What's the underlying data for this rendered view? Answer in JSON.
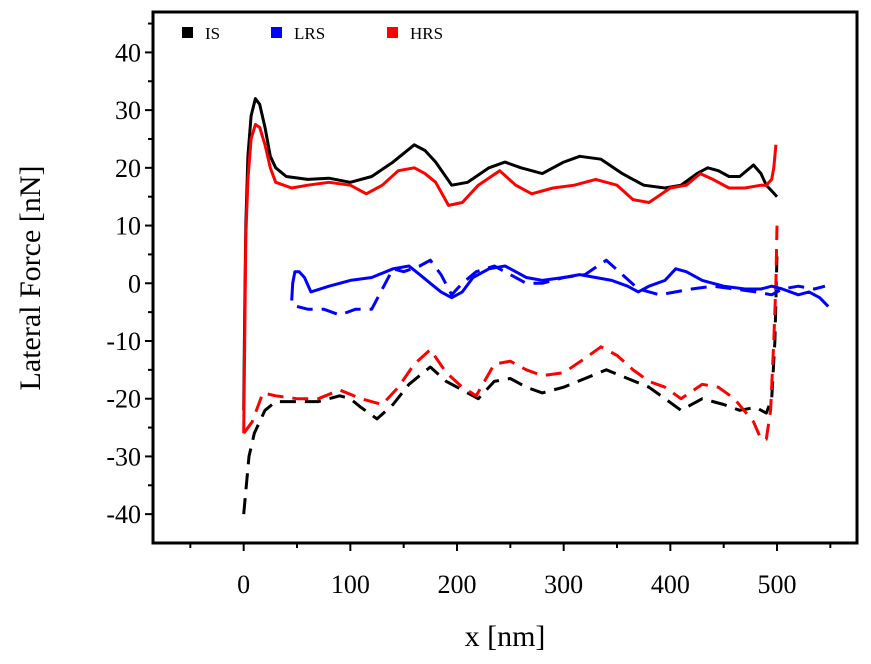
{
  "chart_data": {
    "type": "line",
    "xlabel": "x [nm]",
    "ylabel": "Lateral Force [nN]",
    "xlim": [
      -85,
      575
    ],
    "ylim": [
      -45,
      47
    ],
    "x_ticks": [
      0,
      100,
      200,
      300,
      400,
      500
    ],
    "y_ticks": [
      40,
      30,
      20,
      10,
      0,
      -10,
      -20,
      -30,
      -40
    ],
    "x_tick_labels": [
      "0",
      "100",
      "200",
      "300",
      "400",
      "500"
    ],
    "y_tick_labels": [
      "40",
      "30",
      "20",
      "10",
      "0",
      "-10",
      "-20",
      "-30",
      "-40"
    ],
    "grid": false,
    "legend_position": "top-left",
    "legend": [
      {
        "label": "IS",
        "color": "#000000"
      },
      {
        "label": "LRS",
        "color": "#0000ff"
      },
      {
        "label": "HRS",
        "color": "#ff0000"
      }
    ],
    "series": [
      {
        "name": "IS",
        "color": "#000000",
        "style": "solid",
        "points": [
          [
            0,
            -22
          ],
          [
            1,
            -5
          ],
          [
            2,
            10
          ],
          [
            4,
            22
          ],
          [
            7,
            29
          ],
          [
            11,
            32
          ],
          [
            15,
            31
          ],
          [
            20,
            27
          ],
          [
            25,
            22
          ],
          [
            30,
            20
          ],
          [
            40,
            18.5
          ],
          [
            60,
            18
          ],
          [
            80,
            18.2
          ],
          [
            100,
            17.5
          ],
          [
            120,
            18.5
          ],
          [
            140,
            21
          ],
          [
            160,
            24
          ],
          [
            170,
            23
          ],
          [
            180,
            21
          ],
          [
            195,
            17
          ],
          [
            210,
            17.5
          ],
          [
            230,
            20
          ],
          [
            245,
            21
          ],
          [
            260,
            20
          ],
          [
            280,
            19
          ],
          [
            300,
            21
          ],
          [
            315,
            22
          ],
          [
            335,
            21.5
          ],
          [
            355,
            19
          ],
          [
            375,
            17
          ],
          [
            395,
            16.5
          ],
          [
            410,
            17
          ],
          [
            425,
            19
          ],
          [
            435,
            20
          ],
          [
            445,
            19.5
          ],
          [
            455,
            18.5
          ],
          [
            465,
            18.5
          ],
          [
            478,
            20.5
          ],
          [
            485,
            19
          ],
          [
            490,
            17
          ],
          [
            495,
            16
          ],
          [
            500,
            15
          ]
        ]
      },
      {
        "name": "IS",
        "color": "#000000",
        "style": "dashed",
        "points": [
          [
            0,
            -40
          ],
          [
            5,
            -30
          ],
          [
            10,
            -26
          ],
          [
            20,
            -22
          ],
          [
            30,
            -20.5
          ],
          [
            50,
            -20.5
          ],
          [
            70,
            -20.5
          ],
          [
            90,
            -19.5
          ],
          [
            100,
            -20
          ],
          [
            110,
            -21.5
          ],
          [
            125,
            -23.5
          ],
          [
            140,
            -21
          ],
          [
            155,
            -17.5
          ],
          [
            175,
            -14.5
          ],
          [
            190,
            -17
          ],
          [
            205,
            -18.5
          ],
          [
            220,
            -20
          ],
          [
            235,
            -17
          ],
          [
            250,
            -16.5
          ],
          [
            265,
            -18
          ],
          [
            280,
            -19
          ],
          [
            300,
            -18
          ],
          [
            320,
            -16.5
          ],
          [
            340,
            -15
          ],
          [
            360,
            -16.5
          ],
          [
            380,
            -18
          ],
          [
            395,
            -20
          ],
          [
            410,
            -22
          ],
          [
            430,
            -20
          ],
          [
            450,
            -21
          ],
          [
            465,
            -22
          ],
          [
            480,
            -21.5
          ],
          [
            490,
            -22.5
          ],
          [
            495,
            -20
          ],
          [
            498,
            -10
          ],
          [
            500,
            5
          ]
        ]
      },
      {
        "name": "HRS",
        "color": "#ff0000",
        "style": "solid",
        "points": [
          [
            0,
            -26
          ],
          [
            1,
            -10
          ],
          [
            2,
            8
          ],
          [
            4,
            18
          ],
          [
            7,
            25
          ],
          [
            11,
            27.5
          ],
          [
            15,
            27
          ],
          [
            20,
            24
          ],
          [
            25,
            20
          ],
          [
            30,
            17.5
          ],
          [
            45,
            16.5
          ],
          [
            60,
            17
          ],
          [
            80,
            17.5
          ],
          [
            100,
            17
          ],
          [
            115,
            15.5
          ],
          [
            130,
            17
          ],
          [
            145,
            19.5
          ],
          [
            160,
            20
          ],
          [
            170,
            19
          ],
          [
            180,
            17.5
          ],
          [
            192,
            13.5
          ],
          [
            205,
            14
          ],
          [
            220,
            17
          ],
          [
            240,
            19.5
          ],
          [
            255,
            17
          ],
          [
            270,
            15.5
          ],
          [
            290,
            16.5
          ],
          [
            310,
            17
          ],
          [
            330,
            18
          ],
          [
            350,
            17
          ],
          [
            365,
            14.5
          ],
          [
            380,
            14
          ],
          [
            400,
            16.5
          ],
          [
            415,
            17
          ],
          [
            428,
            19
          ],
          [
            440,
            18
          ],
          [
            455,
            16.5
          ],
          [
            470,
            16.5
          ],
          [
            485,
            17
          ],
          [
            490,
            17
          ],
          [
            495,
            18
          ],
          [
            497,
            20
          ],
          [
            499,
            24
          ]
        ]
      },
      {
        "name": "HRS",
        "color": "#ff0000",
        "style": "dashed",
        "points": [
          [
            0,
            -26
          ],
          [
            8,
            -24
          ],
          [
            18,
            -19
          ],
          [
            30,
            -19.5
          ],
          [
            50,
            -20
          ],
          [
            70,
            -20
          ],
          [
            90,
            -18.5
          ],
          [
            110,
            -20
          ],
          [
            130,
            -21
          ],
          [
            145,
            -18
          ],
          [
            160,
            -14
          ],
          [
            175,
            -11.5
          ],
          [
            190,
            -15.5
          ],
          [
            205,
            -18
          ],
          [
            218,
            -19.5
          ],
          [
            235,
            -14
          ],
          [
            250,
            -13.5
          ],
          [
            265,
            -15
          ],
          [
            280,
            -16
          ],
          [
            300,
            -15.5
          ],
          [
            320,
            -13
          ],
          [
            335,
            -11
          ],
          [
            350,
            -12.5
          ],
          [
            365,
            -15
          ],
          [
            380,
            -17
          ],
          [
            395,
            -18
          ],
          [
            410,
            -20
          ],
          [
            430,
            -17.5
          ],
          [
            445,
            -18
          ],
          [
            460,
            -20
          ],
          [
            478,
            -24
          ],
          [
            485,
            -27
          ],
          [
            490,
            -27
          ],
          [
            494,
            -22
          ],
          [
            497,
            -10
          ],
          [
            499,
            0
          ],
          [
            500,
            10
          ]
        ]
      },
      {
        "name": "LRS",
        "color": "#0000ff",
        "style": "solid",
        "points": [
          [
            45,
            -3
          ],
          [
            46,
            0
          ],
          [
            48,
            2
          ],
          [
            52,
            2
          ],
          [
            57,
            1
          ],
          [
            63,
            -1.5
          ],
          [
            80,
            -0.5
          ],
          [
            100,
            0.5
          ],
          [
            120,
            1
          ],
          [
            140,
            2.5
          ],
          [
            155,
            3
          ],
          [
            165,
            1.5
          ],
          [
            175,
            0
          ],
          [
            185,
            -1.5
          ],
          [
            195,
            -2.5
          ],
          [
            205,
            -1.5
          ],
          [
            215,
            1
          ],
          [
            230,
            2.5
          ],
          [
            245,
            3
          ],
          [
            255,
            2
          ],
          [
            265,
            1
          ],
          [
            280,
            0.5
          ],
          [
            300,
            1
          ],
          [
            315,
            1.5
          ],
          [
            330,
            1
          ],
          [
            345,
            0.5
          ],
          [
            360,
            -0.5
          ],
          [
            370,
            -1.5
          ],
          [
            380,
            -0.5
          ],
          [
            395,
            0.5
          ],
          [
            405,
            2.5
          ],
          [
            415,
            2
          ],
          [
            430,
            0.5
          ],
          [
            450,
            -0.5
          ],
          [
            470,
            -1
          ],
          [
            485,
            -1
          ],
          [
            495,
            -0.5
          ],
          [
            505,
            -1
          ],
          [
            520,
            -2
          ],
          [
            530,
            -1.5
          ],
          [
            540,
            -2.5
          ],
          [
            548,
            -4
          ]
        ]
      },
      {
        "name": "LRS",
        "color": "#0000ff",
        "style": "dashed",
        "points": [
          [
            50,
            -4
          ],
          [
            60,
            -4.5
          ],
          [
            75,
            -4.5
          ],
          [
            90,
            -5.5
          ],
          [
            105,
            -4.5
          ],
          [
            120,
            -4.5
          ],
          [
            130,
            -1
          ],
          [
            140,
            2.5
          ],
          [
            150,
            2
          ],
          [
            165,
            3
          ],
          [
            175,
            4
          ],
          [
            185,
            1.5
          ],
          [
            195,
            -2
          ],
          [
            205,
            0
          ],
          [
            218,
            2
          ],
          [
            235,
            3
          ],
          [
            250,
            1.5
          ],
          [
            265,
            0
          ],
          [
            280,
            0
          ],
          [
            300,
            1
          ],
          [
            320,
            1.5
          ],
          [
            340,
            4
          ],
          [
            355,
            1.5
          ],
          [
            370,
            -1
          ],
          [
            390,
            -2
          ],
          [
            405,
            -1.5
          ],
          [
            420,
            -1
          ],
          [
            440,
            -0.5
          ],
          [
            460,
            -1
          ],
          [
            480,
            -1.5
          ],
          [
            495,
            -2
          ],
          [
            505,
            -1
          ],
          [
            520,
            -0.5
          ],
          [
            535,
            -1
          ],
          [
            545,
            -0.5
          ]
        ]
      }
    ]
  }
}
